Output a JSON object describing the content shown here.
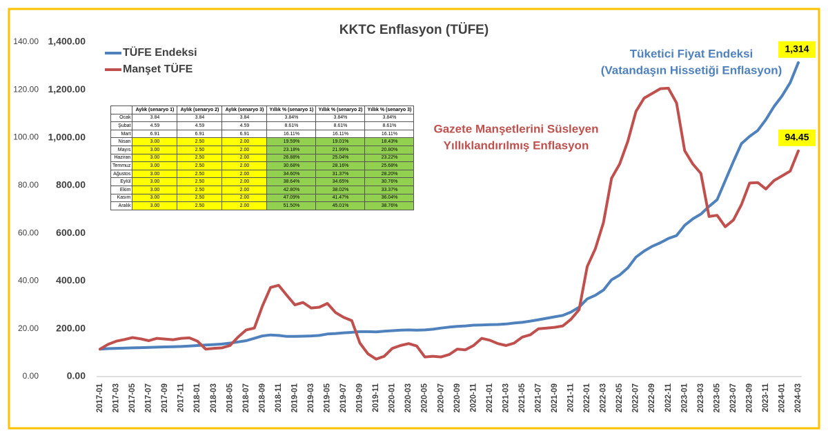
{
  "chart_data": {
    "type": "line",
    "title": "KKTC Enflasyon (TÜFE)",
    "legend": "upper left",
    "grid": false,
    "categories": [
      "2017-01",
      null,
      "2017-03",
      null,
      "2017-05",
      null,
      "2017-07",
      null,
      "2017-09",
      null,
      "2017-11",
      null,
      "2018-01",
      null,
      "2018-03",
      null,
      "2018-05",
      null,
      "2018-07",
      null,
      "2018-09",
      null,
      "2018-11",
      null,
      "2019-01",
      null,
      "2019-03",
      null,
      "2019-05",
      null,
      "2019-07",
      null,
      "2019-09",
      null,
      "2019-11",
      null,
      "2020-01",
      null,
      "2020-03",
      null,
      "2020-05",
      null,
      "2020-07",
      null,
      "2020-09",
      null,
      "2020-11",
      null,
      "2021-01",
      null,
      "2021-03",
      null,
      "2021-05",
      null,
      "2021-07",
      null,
      "2021-09",
      null,
      "2021-11",
      null,
      "2022-01",
      null,
      "2022-03",
      null,
      "2022-05",
      null,
      "2022-07",
      null,
      "2022-09",
      null,
      "2022-11",
      null,
      "2023-01",
      null,
      "2023-03",
      null,
      "2023-05",
      null,
      "2023-07",
      null,
      "2023-09",
      null,
      "2023-11",
      null,
      "2024-01",
      null,
      "2024-03"
    ],
    "series": [
      {
        "name": "TÜFE Endeksi",
        "color": "#4f81bd",
        "axis": "y",
        "end_label": "1,314",
        "values": [
          115,
          117,
          118,
          119,
          120,
          121,
          122,
          123,
          124,
          125,
          126,
          128,
          130,
          132,
          134,
          136,
          140,
          145,
          150,
          160,
          170,
          174,
          172,
          168,
          168,
          169,
          170,
          172,
          178,
          180,
          183,
          185,
          188,
          188,
          187,
          190,
          192,
          194,
          195,
          194,
          195,
          198,
          203,
          207,
          210,
          212,
          215,
          216,
          217,
          218,
          220,
          224,
          227,
          232,
          238,
          244,
          250,
          256,
          270,
          290,
          325,
          340,
          362,
          405,
          425,
          455,
          500,
          525,
          545,
          560,
          578,
          590,
          633,
          660,
          680,
          712,
          740,
          820,
          900,
          975,
          1005,
          1030,
          1075,
          1130,
          1175,
          1230,
          1314
        ]
      },
      {
        "name": "Manşet TÜFE",
        "color": "#c0504d",
        "axis": "y2",
        "values": [
          11.5,
          13.5,
          14.8,
          15.5,
          16.3,
          15.8,
          15,
          16,
          15.7,
          15.4,
          16,
          16.2,
          14.8,
          11.5,
          11.8,
          12,
          13,
          16.5,
          19.5,
          20.3,
          29.5,
          37.3,
          38.2,
          34,
          30,
          31,
          28.7,
          29,
          30.6,
          26.8,
          24.8,
          23.4,
          14,
          9.5,
          7.3,
          8.5,
          11.8,
          13,
          13.8,
          12.8,
          8.2,
          8.5,
          8.2,
          9.2,
          11.5,
          11.2,
          13,
          16,
          15.2,
          13.8,
          13,
          14,
          16.5,
          17.5,
          20,
          20.3,
          20.6,
          21.2,
          24,
          28,
          46,
          53.5,
          64.5,
          83,
          89,
          98.5,
          111,
          116.5,
          118.5,
          120.5,
          120.7,
          114.5,
          94.5,
          89,
          85,
          67,
          67.5,
          62.7,
          65.5,
          72,
          81,
          81.2,
          78.5,
          82,
          84,
          86,
          94.45
        ]
      }
    ],
    "ylim": [
      0,
      1400
    ],
    "yticks": [
      {
        "value": 0,
        "label": "0.00"
      },
      {
        "value": 200,
        "label": "200.00"
      },
      {
        "value": 400,
        "label": "400.00"
      },
      {
        "value": 600,
        "label": "600.00"
      },
      {
        "value": 800,
        "label": "800.00"
      },
      {
        "value": 1000,
        "label": "1,000.00"
      },
      {
        "value": 1200,
        "label": "1,200.00"
      },
      {
        "value": 1400,
        "label": "1,400.00"
      }
    ],
    "y2lim": [
      0,
      140
    ],
    "y2ticks": [
      {
        "value": 0,
        "label": "0.00"
      },
      {
        "value": 20,
        "label": "20.00"
      },
      {
        "value": 40,
        "label": "40.00"
      },
      {
        "value": 60,
        "label": "60.00"
      },
      {
        "value": 80,
        "label": "80.00"
      },
      {
        "value": 100,
        "label": "100.00"
      },
      {
        "value": 120,
        "label": "120.00"
      },
      {
        "value": 140,
        "label": "140.00"
      }
    ],
    "annotations": [
      {
        "lines": [
          "Tüketici Fiyat Endeksi",
          "(Vatandaşın Hissetiği Enflasyon)"
        ],
        "color": "#4f81bd"
      },
      {
        "lines": [
          "Gazete Manşetlerini Süsleyen",
          "Yıllıklandırılmış Enflasyon"
        ],
        "color": "#c0504d"
      }
    ],
    "table": {
      "columns": [
        "Aylık (senaryo 1)",
        "Aylık (senaryo 2)",
        "Aylık (senaryo 3)",
        "Yıllık % (senaryo 1)",
        "Yıllık % (senaryo 2)",
        "Yıllık % (senaryo 3)"
      ],
      "rows": [
        [
          "Ocak",
          "3.84",
          "3.84",
          "3.84",
          "3.84%",
          "3.84%",
          "3.84%"
        ],
        [
          "Şubat",
          "4.59",
          "4.59",
          "4.59",
          "8.61%",
          "8.61%",
          "8.61%"
        ],
        [
          "Mart",
          "6.91",
          "6.91",
          "6.91",
          "16.11%",
          "16.11%",
          "16.11%"
        ],
        [
          "Nisan",
          "3.00",
          "2.50",
          "2.00",
          "19.59%",
          "19.01%",
          "18.43%"
        ],
        [
          "Mayıs",
          "3.00",
          "2.50",
          "2.00",
          "23.18%",
          "21.99%",
          "20.80%"
        ],
        [
          "Haziran",
          "3.00",
          "2.50",
          "2.00",
          "26.88%",
          "25.04%",
          "23.22%"
        ],
        [
          "Temmuz",
          "3.00",
          "2.50",
          "2.00",
          "30.68%",
          "28.16%",
          "25.68%"
        ],
        [
          "Ağustos",
          "3.00",
          "2.50",
          "2.00",
          "34.60%",
          "31.37%",
          "28.20%"
        ],
        [
          "Eylül",
          "3.00",
          "2.50",
          "2.00",
          "38.64%",
          "34.65%",
          "30.76%"
        ],
        [
          "Ekim",
          "3.00",
          "2.50",
          "2.00",
          "42.80%",
          "38.02%",
          "33.37%"
        ],
        [
          "Kasım",
          "3.00",
          "2.50",
          "2.00",
          "47.09%",
          "41.47%",
          "36.04%"
        ],
        [
          "Aralık",
          "3.00",
          "2.50",
          "2.00",
          "51.50%",
          "45.01%",
          "38.76%"
        ]
      ]
    }
  }
}
